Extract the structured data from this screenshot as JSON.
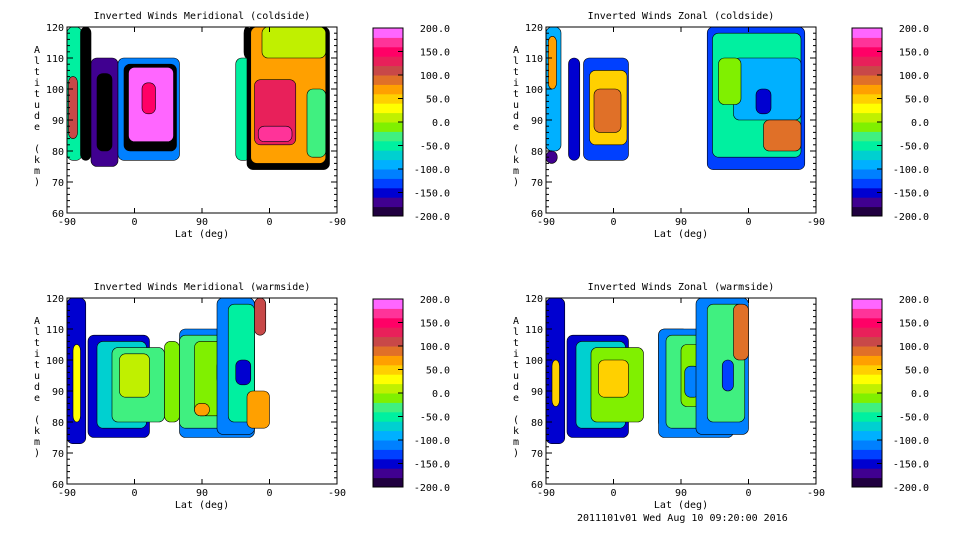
{
  "chart_data": [
    {
      "type": "heatmap",
      "title": "Inverted Winds Meridional (coldside)",
      "xlabel": "Lat (deg)",
      "ylabel": "Altitude (km)",
      "x_tick_labels": [
        "-90",
        "0",
        "90",
        "0",
        "-90"
      ],
      "y_tick_labels": [
        "60",
        "70",
        "80",
        "90",
        "100",
        "110",
        "120"
      ],
      "ylim": [
        60,
        120
      ],
      "colorbar": {
        "range": [
          -200,
          200
        ],
        "labels": [
          "200.0",
          "150.0",
          "100.0",
          "50.0",
          "0.0",
          "-50.0",
          "-100.0",
          "-150.0",
          "-200.0"
        ]
      }
    },
    {
      "type": "heatmap",
      "title": "Inverted Winds Zonal (coldside)",
      "xlabel": "Lat (deg)",
      "ylabel": "Altitude (km)",
      "x_tick_labels": [
        "-90",
        "0",
        "90",
        "0",
        "-90"
      ],
      "y_tick_labels": [
        "60",
        "70",
        "80",
        "90",
        "100",
        "110",
        "120"
      ],
      "ylim": [
        60,
        120
      ],
      "colorbar": {
        "range": [
          -200,
          200
        ],
        "labels": [
          "200.0",
          "150.0",
          "100.0",
          "50.0",
          "0.0",
          "-50.0",
          "-100.0",
          "-150.0",
          "-200.0"
        ]
      }
    },
    {
      "type": "heatmap",
      "title": "Inverted Winds Meridional (warmside)",
      "xlabel": "Lat (deg)",
      "ylabel": "Altitude (km)",
      "x_tick_labels": [
        "-90",
        "0",
        "90",
        "0",
        "-90"
      ],
      "y_tick_labels": [
        "60",
        "70",
        "80",
        "90",
        "100",
        "110",
        "120"
      ],
      "ylim": [
        60,
        120
      ],
      "colorbar": {
        "range": [
          -200,
          200
        ],
        "labels": [
          "200.0",
          "150.0",
          "100.0",
          "50.0",
          "0.0",
          "-50.0",
          "-100.0",
          "-150.0",
          "-200.0"
        ]
      }
    },
    {
      "type": "heatmap",
      "title": "Inverted Winds Zonal (warmside)",
      "xlabel": "Lat (deg)",
      "ylabel": "Altitude (km)",
      "x_tick_labels": [
        "-90",
        "0",
        "90",
        "0",
        "-90"
      ],
      "y_tick_labels": [
        "60",
        "70",
        "80",
        "90",
        "100",
        "110",
        "120"
      ],
      "ylim": [
        60,
        120
      ],
      "colorbar": {
        "range": [
          -200,
          200
        ],
        "labels": [
          "200.0",
          "150.0",
          "100.0",
          "50.0",
          "0.0",
          "-50.0",
          "-100.0",
          "-150.0",
          "-200.0"
        ]
      }
    }
  ],
  "colorscale": [
    "#200040",
    "#400090",
    "#0000d0",
    "#0040ff",
    "#0080ff",
    "#00b0ff",
    "#00d0d0",
    "#00f0a0",
    "#40f080",
    "#80f000",
    "#c0f000",
    "#ffff00",
    "#ffd000",
    "#ffa000",
    "#e07028",
    "#c84848",
    "#e8205a",
    "#ff0066",
    "#ff3399",
    "#ff66ff"
  ],
  "footer": "2011101v01 Wed Aug 10 09:20:00 2016"
}
